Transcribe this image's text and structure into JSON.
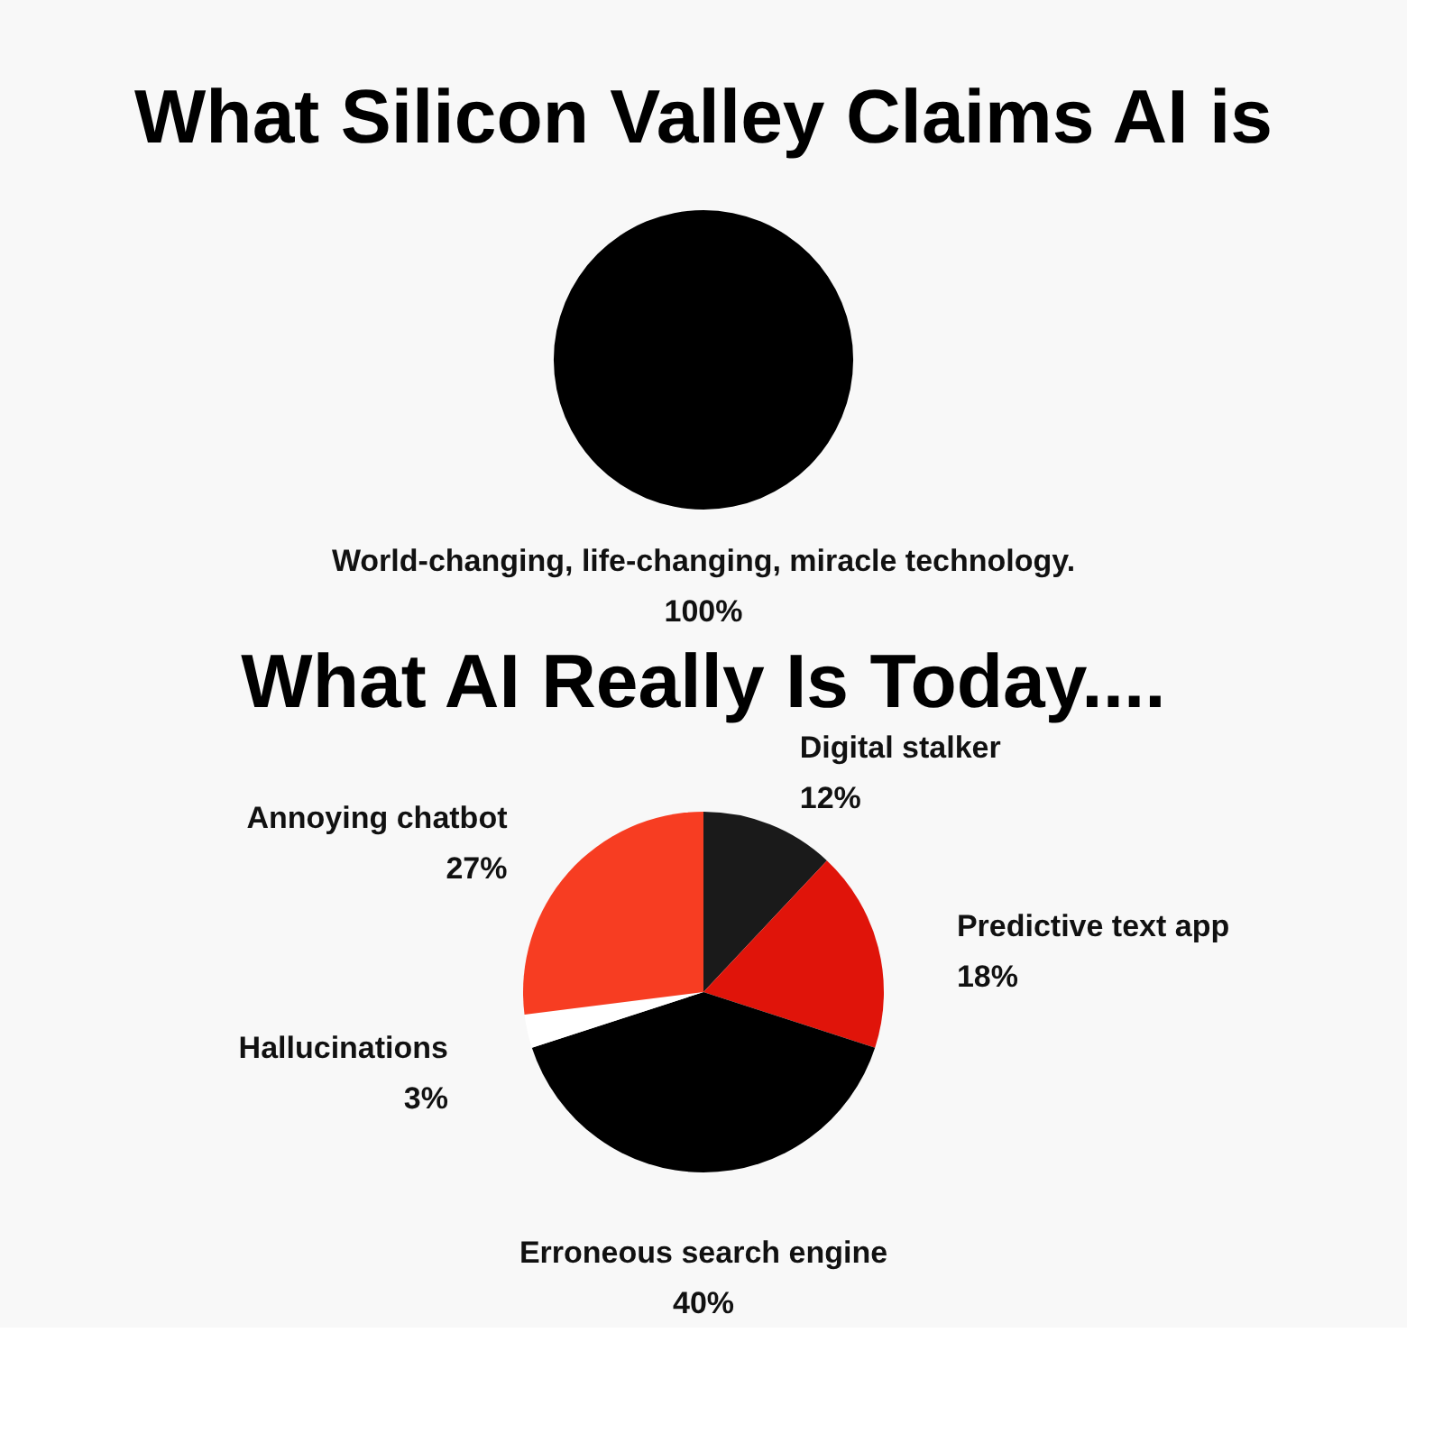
{
  "chart_data": [
    {
      "type": "pie",
      "title": "What Silicon Valley Claims AI is",
      "categories": [
        "World-changing, life-changing, miracle technology."
      ],
      "values": [
        100
      ],
      "colors": [
        "#000000"
      ],
      "value_labels": [
        "100%"
      ],
      "legend": false
    },
    {
      "type": "pie",
      "title": "What AI Really Is Today....",
      "categories": [
        "Digital stalker",
        "Predictive text app",
        "Erroneous search engine",
        "Hallucinations",
        "Annoying chatbot"
      ],
      "values": [
        12,
        18,
        40,
        3,
        27
      ],
      "colors": [
        "#1a1a1a",
        "#e0140a",
        "#000000",
        "#ffffff",
        "#f73d22"
      ],
      "value_labels": [
        "12%",
        "18%",
        "40%",
        "3%",
        "27%"
      ],
      "legend": false
    }
  ]
}
